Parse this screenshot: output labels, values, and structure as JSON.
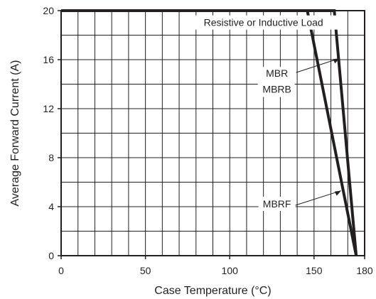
{
  "chart_data": {
    "type": "line",
    "title": "",
    "xlabel": "Case Temperature (°C)",
    "ylabel": "Average Forward Current (A)",
    "xlim": [
      0,
      180
    ],
    "ylim": [
      0,
      20
    ],
    "x_ticks": [
      0,
      50,
      100,
      150,
      180
    ],
    "y_ticks": [
      0,
      4,
      8,
      12,
      16,
      20
    ],
    "grid": true,
    "legend": "none",
    "series": [
      {
        "name": "MBR MBRB",
        "x": [
          0,
          162,
          175
        ],
        "y": [
          20,
          20,
          0
        ]
      },
      {
        "name": "MBRF",
        "x": [
          0,
          146,
          175
        ],
        "y": [
          20,
          20,
          0
        ]
      }
    ],
    "annotations": [
      {
        "text": "Resistive or Inductive Load",
        "x": 120,
        "y": 18.8
      },
      {
        "text": "MBR",
        "x": 128,
        "y": 14.6
      },
      {
        "text": "MBRB",
        "x": 128,
        "y": 13.3
      },
      {
        "text": "MBRF",
        "x": 128,
        "y": 4.0
      }
    ]
  }
}
